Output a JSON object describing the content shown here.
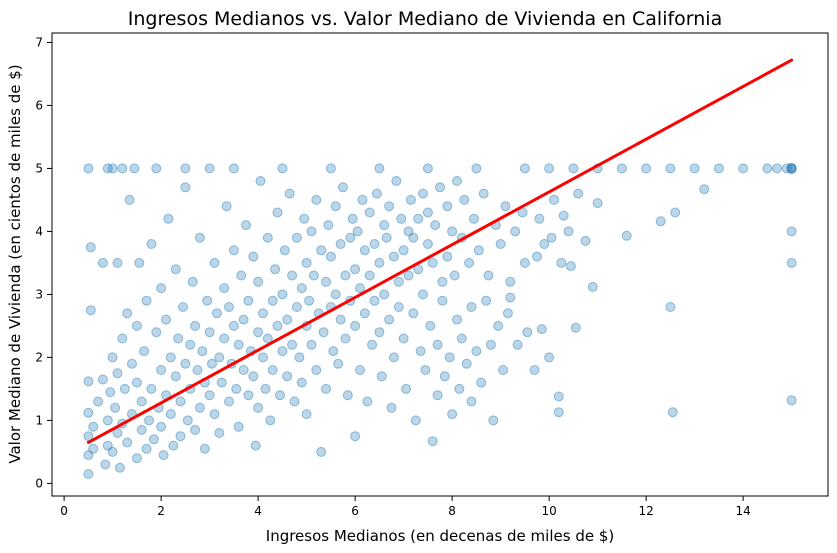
{
  "chart_data": {
    "type": "scatter",
    "title": "Ingresos Medianos vs. Valor Mediano de Vivienda en California",
    "xlabel": "Ingresos Medianos (en decenas de miles de $)",
    "ylabel": "Valor Mediano de Vivienda (en cientos de miles de $)",
    "xlim": [
      -0.25,
      15.75
    ],
    "ylim": [
      -0.2,
      7.15
    ],
    "x_ticks": [
      0,
      2,
      4,
      6,
      8,
      10,
      12,
      14
    ],
    "y_ticks": [
      0,
      1,
      2,
      3,
      4,
      5,
      6,
      7
    ],
    "grid": false,
    "legend": "none",
    "point_color": "#1f77b4",
    "point_alpha": 0.3,
    "regression_line": {
      "color": "#ff0000",
      "start": [
        0.5,
        0.65
      ],
      "end": [
        15.0,
        6.72
      ]
    },
    "points": [
      [
        0.5,
        0.15
      ],
      [
        0.5,
        0.45
      ],
      [
        0.5,
        0.75
      ],
      [
        0.5,
        1.12
      ],
      [
        0.5,
        1.62
      ],
      [
        0.5,
        5.0
      ],
      [
        0.55,
        3.75
      ],
      [
        0.55,
        2.75
      ],
      [
        0.6,
        0.9
      ],
      [
        0.6,
        0.55
      ],
      [
        0.7,
        1.3
      ],
      [
        0.8,
        1.65
      ],
      [
        0.8,
        3.5
      ],
      [
        0.85,
        0.3
      ],
      [
        0.9,
        0.6
      ],
      [
        0.9,
        1.0
      ],
      [
        0.95,
        1.45
      ],
      [
        1.0,
        0.5
      ],
      [
        1.0,
        2.0
      ],
      [
        1.0,
        5.0
      ],
      [
        1.05,
        1.2
      ],
      [
        1.1,
        0.8
      ],
      [
        1.1,
        1.75
      ],
      [
        1.1,
        3.5
      ],
      [
        1.15,
        0.25
      ],
      [
        1.2,
        2.3
      ],
      [
        1.2,
        0.95
      ],
      [
        1.25,
        1.5
      ],
      [
        1.3,
        0.65
      ],
      [
        1.3,
        2.7
      ],
      [
        1.35,
        4.5
      ],
      [
        1.4,
        1.1
      ],
      [
        1.4,
        1.9
      ],
      [
        1.45,
        5.0
      ],
      [
        1.5,
        0.4
      ],
      [
        1.5,
        1.6
      ],
      [
        1.5,
        2.5
      ],
      [
        1.55,
        3.5
      ],
      [
        1.6,
        0.85
      ],
      [
        1.6,
        1.3
      ],
      [
        1.65,
        2.1
      ],
      [
        1.7,
        0.55
      ],
      [
        1.7,
        2.9
      ],
      [
        1.75,
        1.0
      ],
      [
        1.8,
        1.5
      ],
      [
        1.8,
        3.8
      ],
      [
        1.85,
        0.7
      ],
      [
        1.9,
        2.4
      ],
      [
        1.9,
        5.0
      ],
      [
        1.95,
        1.2
      ],
      [
        2.0,
        0.9
      ],
      [
        2.0,
        1.8
      ],
      [
        2.0,
        3.1
      ],
      [
        2.05,
        0.45
      ],
      [
        2.1,
        1.4
      ],
      [
        2.1,
        2.6
      ],
      [
        2.15,
        4.2
      ],
      [
        2.2,
        1.1
      ],
      [
        2.2,
        2.0
      ],
      [
        2.25,
        0.6
      ],
      [
        2.3,
        1.7
      ],
      [
        2.3,
        3.4
      ],
      [
        2.35,
        2.3
      ],
      [
        2.4,
        1.3
      ],
      [
        2.4,
        0.75
      ],
      [
        2.45,
        2.8
      ],
      [
        2.5,
        1.9
      ],
      [
        2.5,
        4.7
      ],
      [
        2.55,
        1.0
      ],
      [
        2.6,
        2.2
      ],
      [
        2.6,
        1.5
      ],
      [
        2.65,
        3.2
      ],
      [
        2.7,
        0.85
      ],
      [
        2.7,
        2.5
      ],
      [
        2.75,
        1.8
      ],
      [
        2.8,
        1.2
      ],
      [
        2.8,
        3.9
      ],
      [
        2.85,
        2.1
      ],
      [
        2.9,
        1.6
      ],
      [
        2.9,
        0.55
      ],
      [
        2.95,
        2.9
      ],
      [
        3.0,
        1.4
      ],
      [
        3.0,
        2.4
      ],
      [
        3.0,
        5.0
      ],
      [
        3.05,
        1.9
      ],
      [
        3.1,
        3.5
      ],
      [
        3.1,
        1.1
      ],
      [
        3.15,
        2.7
      ],
      [
        3.2,
        2.0
      ],
      [
        3.2,
        0.8
      ],
      [
        3.25,
        1.6
      ],
      [
        3.3,
        3.1
      ],
      [
        3.3,
        2.3
      ],
      [
        3.35,
        4.4
      ],
      [
        3.4,
        1.3
      ],
      [
        3.4,
        2.8
      ],
      [
        3.45,
        1.9
      ],
      [
        3.5,
        2.5
      ],
      [
        3.5,
        3.7
      ],
      [
        3.55,
        1.5
      ],
      [
        3.6,
        2.2
      ],
      [
        3.6,
        0.9
      ],
      [
        3.65,
        3.3
      ],
      [
        3.7,
        1.8
      ],
      [
        3.7,
        2.6
      ],
      [
        3.75,
        4.1
      ],
      [
        3.8,
        1.4
      ],
      [
        3.8,
        2.9
      ],
      [
        3.85,
        2.1
      ],
      [
        3.9,
        3.6
      ],
      [
        3.9,
        1.7
      ],
      [
        3.95,
        0.6
      ],
      [
        4.0,
        2.4
      ],
      [
        4.0,
        1.2
      ],
      [
        4.0,
        3.2
      ],
      [
        4.05,
        4.8
      ],
      [
        4.1,
        2.0
      ],
      [
        4.1,
        2.7
      ],
      [
        4.15,
        1.5
      ],
      [
        4.2,
        3.9
      ],
      [
        4.2,
        2.3
      ],
      [
        4.25,
        1.0
      ],
      [
        4.3,
        2.9
      ],
      [
        4.3,
        1.8
      ],
      [
        4.35,
        3.4
      ],
      [
        4.4,
        2.5
      ],
      [
        4.4,
        4.3
      ],
      [
        4.45,
        1.4
      ],
      [
        4.5,
        2.1
      ],
      [
        4.5,
        3.0
      ],
      [
        4.55,
        3.7
      ],
      [
        4.6,
        1.7
      ],
      [
        4.6,
        2.6
      ],
      [
        4.65,
        4.6
      ],
      [
        4.7,
        2.2
      ],
      [
        4.7,
        3.3
      ],
      [
        4.75,
        1.3
      ],
      [
        4.8,
        2.8
      ],
      [
        4.8,
        3.9
      ],
      [
        4.85,
        2.0
      ],
      [
        4.9,
        3.1
      ],
      [
        4.9,
        1.6
      ],
      [
        4.95,
        4.2
      ],
      [
        5.0,
        2.5
      ],
      [
        5.0,
        3.5
      ],
      [
        5.0,
        1.1
      ],
      [
        5.05,
        2.9
      ],
      [
        5.1,
        4.0
      ],
      [
        5.1,
        2.2
      ],
      [
        5.15,
        3.3
      ],
      [
        5.2,
        1.8
      ],
      [
        5.2,
        4.5
      ],
      [
        5.25,
        2.7
      ],
      [
        5.3,
        3.7
      ],
      [
        5.3,
        0.5
      ],
      [
        5.35,
        2.4
      ],
      [
        5.4,
        3.2
      ],
      [
        5.4,
        1.5
      ],
      [
        5.45,
        4.1
      ],
      [
        5.5,
        2.8
      ],
      [
        5.5,
        3.6
      ],
      [
        5.55,
        2.1
      ],
      [
        5.6,
        4.4
      ],
      [
        5.6,
        3.0
      ],
      [
        5.65,
        1.9
      ],
      [
        5.7,
        3.8
      ],
      [
        5.7,
        2.6
      ],
      [
        5.75,
        4.7
      ],
      [
        5.8,
        3.3
      ],
      [
        5.8,
        2.3
      ],
      [
        5.85,
        1.4
      ],
      [
        5.9,
        3.9
      ],
      [
        5.9,
        2.9
      ],
      [
        5.95,
        4.2
      ],
      [
        6.0,
        3.4
      ],
      [
        6.0,
        2.5
      ],
      [
        6.0,
        0.75
      ],
      [
        6.05,
        4.0
      ],
      [
        6.1,
        3.1
      ],
      [
        6.1,
        1.8
      ],
      [
        6.15,
        4.5
      ],
      [
        6.2,
        2.7
      ],
      [
        6.2,
        3.7
      ],
      [
        6.25,
        1.3
      ],
      [
        6.3,
        3.3
      ],
      [
        6.3,
        4.3
      ],
      [
        6.35,
        2.2
      ],
      [
        6.4,
        3.8
      ],
      [
        6.4,
        2.9
      ],
      [
        6.45,
        4.6
      ],
      [
        6.5,
        3.5
      ],
      [
        6.5,
        2.4
      ],
      [
        6.55,
        1.7
      ],
      [
        6.6,
        4.1
      ],
      [
        6.6,
        3.0
      ],
      [
        6.65,
        3.9
      ],
      [
        6.7,
        2.6
      ],
      [
        6.7,
        4.4
      ],
      [
        6.75,
        1.2
      ],
      [
        6.8,
        3.6
      ],
      [
        6.8,
        2.0
      ],
      [
        6.85,
        4.8
      ],
      [
        6.9,
        3.2
      ],
      [
        6.9,
        2.8
      ],
      [
        6.95,
        4.2
      ],
      [
        7.0,
        3.7
      ],
      [
        7.0,
        2.3
      ],
      [
        7.05,
        1.5
      ],
      [
        7.1,
        4.0
      ],
      [
        7.1,
        3.3
      ],
      [
        7.15,
        4.5
      ],
      [
        7.2,
        2.7
      ],
      [
        7.2,
        3.9
      ],
      [
        7.25,
        1.0
      ],
      [
        7.3,
        4.2
      ],
      [
        7.3,
        3.4
      ],
      [
        7.35,
        2.1
      ],
      [
        7.4,
        4.6
      ],
      [
        7.4,
        3.0
      ],
      [
        7.45,
        1.8
      ],
      [
        7.5,
        3.8
      ],
      [
        7.5,
        4.3
      ],
      [
        7.55,
        2.5
      ],
      [
        7.6,
        0.67
      ],
      [
        7.6,
        3.5
      ],
      [
        7.65,
        4.1
      ],
      [
        7.7,
        2.2
      ],
      [
        7.7,
        1.4
      ],
      [
        7.75,
        4.7
      ],
      [
        7.8,
        3.2
      ],
      [
        7.8,
        2.9
      ],
      [
        7.85,
        1.7
      ],
      [
        7.9,
        4.4
      ],
      [
        7.9,
        3.6
      ],
      [
        7.95,
        2.0
      ],
      [
        8.0,
        4.0
      ],
      [
        8.0,
        1.1
      ],
      [
        8.05,
        3.3
      ],
      [
        8.1,
        2.6
      ],
      [
        8.1,
        4.8
      ],
      [
        8.15,
        1.5
      ],
      [
        8.2,
        3.9
      ],
      [
        8.2,
        2.3
      ],
      [
        8.25,
        4.5
      ],
      [
        8.3,
        1.9
      ],
      [
        8.35,
        3.5
      ],
      [
        8.4,
        2.8
      ],
      [
        8.4,
        1.3
      ],
      [
        8.45,
        4.2
      ],
      [
        8.5,
        2.1
      ],
      [
        8.55,
        3.7
      ],
      [
        8.6,
        1.6
      ],
      [
        8.65,
        4.6
      ],
      [
        8.7,
        2.9
      ],
      [
        8.75,
        3.3
      ],
      [
        8.8,
        2.2
      ],
      [
        8.85,
        1.0
      ],
      [
        8.9,
        4.1
      ],
      [
        8.95,
        2.5
      ],
      [
        9.0,
        3.8
      ],
      [
        9.05,
        1.8
      ],
      [
        9.1,
        4.4
      ],
      [
        9.15,
        2.7
      ],
      [
        9.2,
        3.2
      ],
      [
        9.2,
        2.95
      ],
      [
        9.3,
        4.0
      ],
      [
        9.35,
        2.2
      ],
      [
        9.45,
        4.3
      ],
      [
        9.5,
        3.5
      ],
      [
        9.55,
        2.4
      ],
      [
        9.7,
        1.8
      ],
      [
        9.75,
        3.6
      ],
      [
        9.8,
        4.2
      ],
      [
        9.85,
        2.45
      ],
      [
        9.9,
        3.8
      ],
      [
        10.0,
        2.0
      ],
      [
        10.05,
        3.9
      ],
      [
        10.1,
        4.5
      ],
      [
        10.2,
        1.13
      ],
      [
        10.2,
        1.38
      ],
      [
        10.25,
        3.5
      ],
      [
        10.3,
        4.25
      ],
      [
        10.4,
        4.0
      ],
      [
        10.45,
        3.45
      ],
      [
        10.55,
        2.47
      ],
      [
        10.6,
        4.6
      ],
      [
        10.75,
        3.85
      ],
      [
        10.9,
        3.12
      ],
      [
        11.0,
        4.45
      ],
      [
        11.6,
        3.93
      ],
      [
        12.3,
        4.16
      ],
      [
        12.5,
        2.8
      ],
      [
        12.55,
        1.13
      ],
      [
        12.6,
        4.3
      ],
      [
        13.2,
        4.67
      ],
      [
        15.0,
        1.32
      ],
      [
        15.0,
        3.5
      ],
      [
        15.0,
        4.0
      ],
      [
        0.9,
        5.0
      ],
      [
        1.2,
        5.0
      ],
      [
        2.5,
        5.0
      ],
      [
        3.5,
        5.0
      ],
      [
        4.5,
        5.0
      ],
      [
        5.5,
        5.0
      ],
      [
        6.5,
        5.0
      ],
      [
        7.5,
        5.0
      ],
      [
        8.5,
        5.0
      ],
      [
        9.5,
        5.0
      ],
      [
        10.0,
        5.0
      ],
      [
        10.5,
        5.0
      ],
      [
        11.0,
        5.0
      ],
      [
        11.5,
        5.0
      ],
      [
        12.0,
        5.0
      ],
      [
        12.5,
        5.0
      ],
      [
        13.0,
        5.0
      ],
      [
        13.5,
        5.0
      ],
      [
        14.0,
        5.0
      ],
      [
        14.5,
        5.0
      ],
      [
        14.7,
        5.0
      ],
      [
        14.9,
        5.0
      ],
      [
        15.0,
        5.0
      ],
      [
        15.0,
        4.99
      ],
      [
        15.0,
        5.01
      ]
    ]
  }
}
